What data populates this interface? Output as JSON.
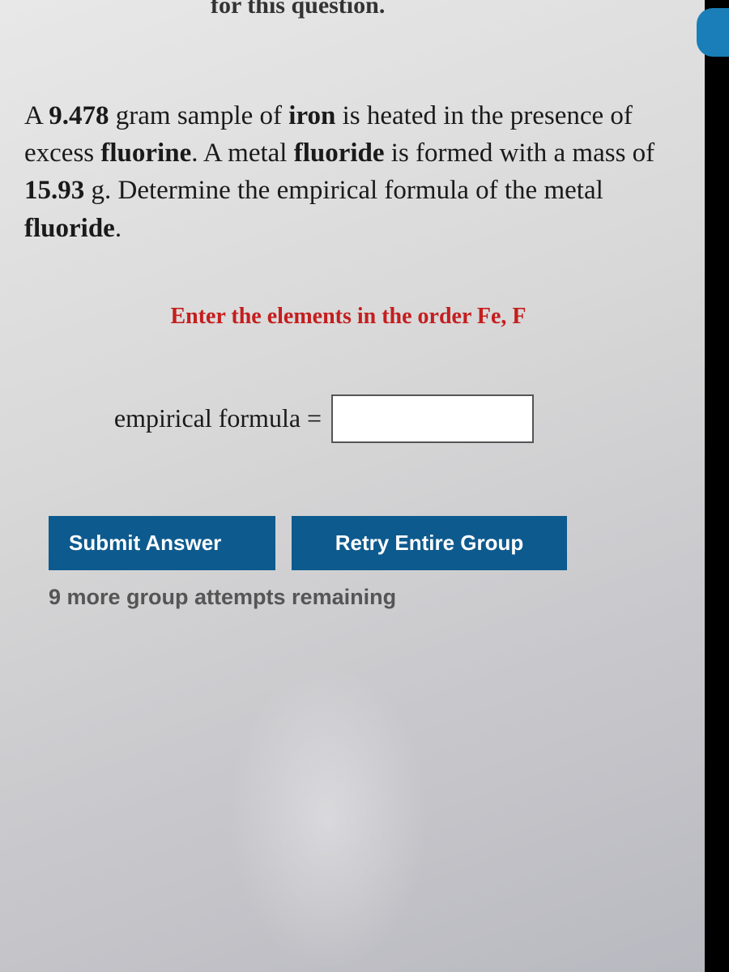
{
  "header_fragment": "for this question.",
  "question": {
    "prefix": "A ",
    "mass1": "9.478",
    "text1": " gram sample of ",
    "element1": "iron",
    "text2": " is heated in the presence of excess ",
    "element2": "fluorine",
    "text3": ". A metal ",
    "compound": "fluoride",
    "text4": " is formed with a mass of ",
    "mass2": "15.93",
    "text5": " g. Determine the empirical formula of the metal ",
    "compound2": "fluoride",
    "text6": "."
  },
  "instruction": "Enter the elements in the order Fe, F",
  "formula_label": "empirical formula =",
  "formula_value": "",
  "buttons": {
    "submit": "Submit Answer",
    "retry": "Retry Entire Group"
  },
  "attempts_text": "9 more group attempts remaining",
  "colors": {
    "button_bg": "#0d5a8e",
    "instruction_text": "#c41e1e",
    "body_text": "#1a1a1a"
  }
}
